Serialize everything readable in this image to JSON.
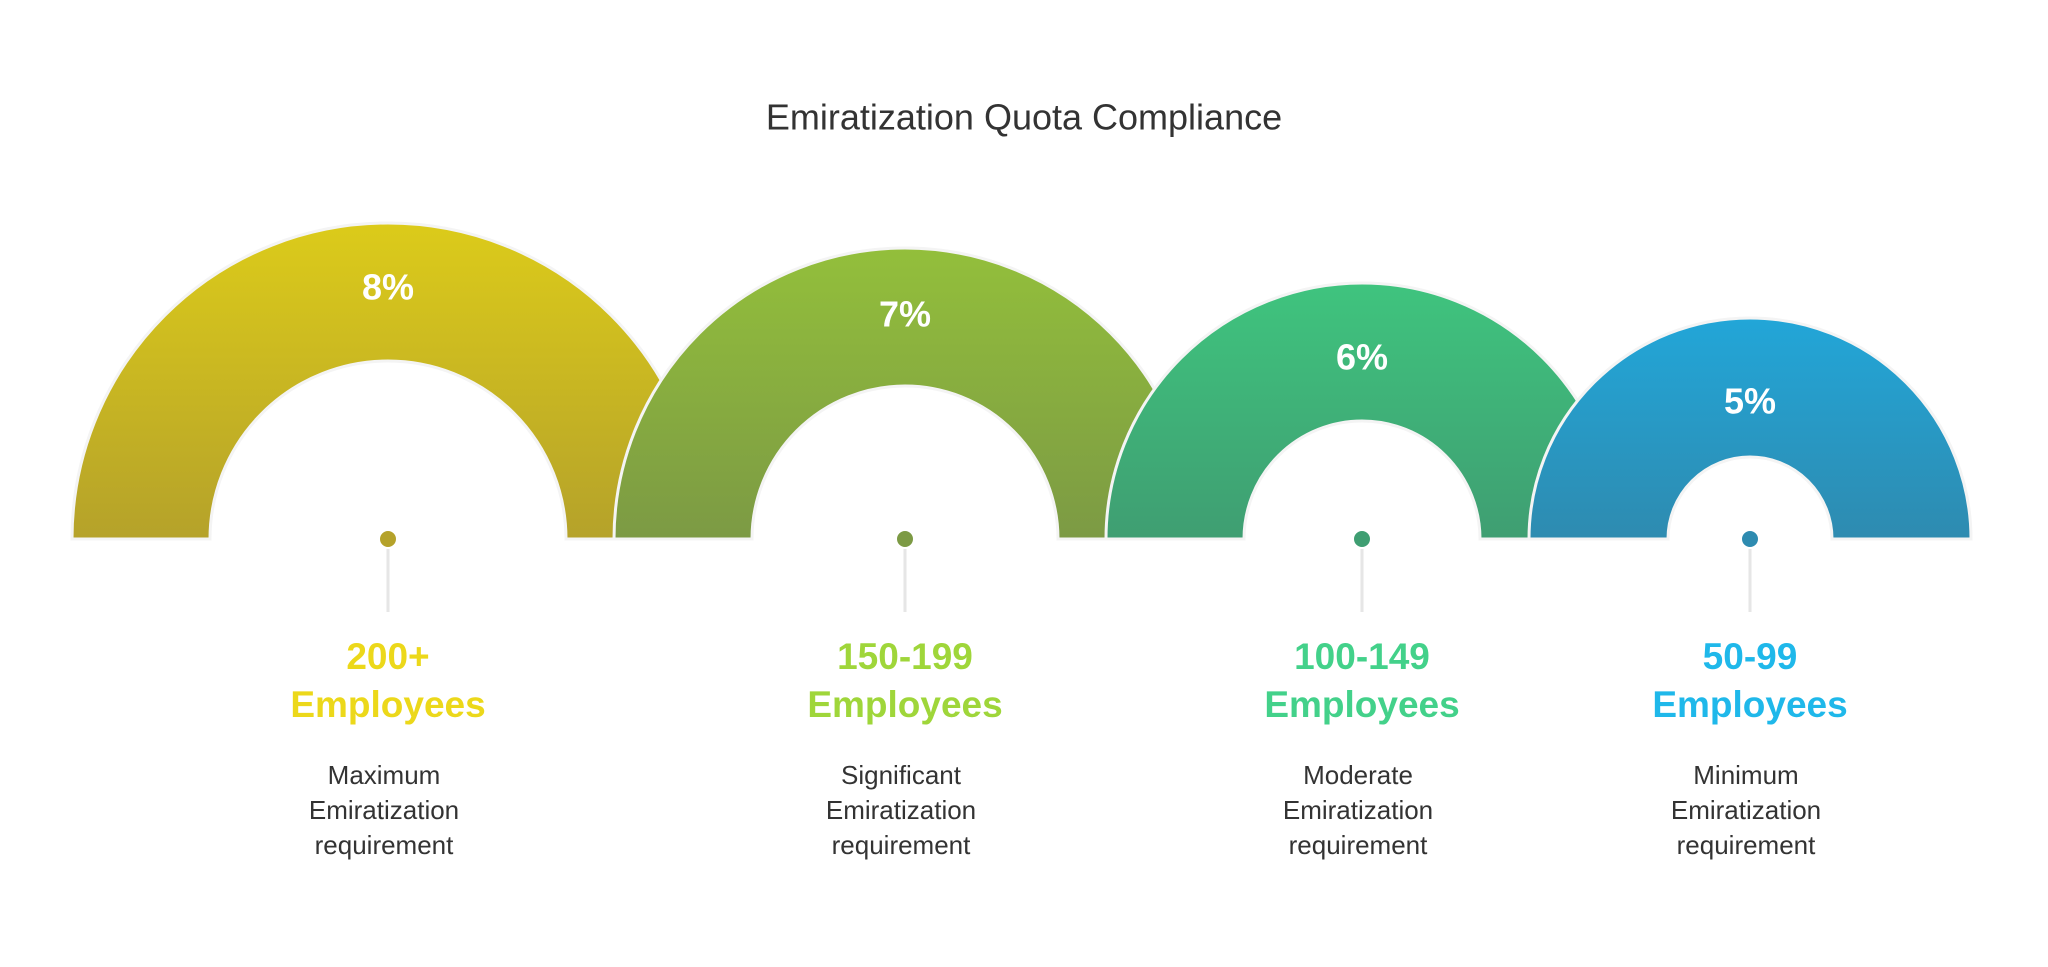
{
  "title": "Emiratization Quota Compliance",
  "items": [
    {
      "percent": "8%",
      "range": "200+",
      "unit": "Employees",
      "description": "Maximum Emiratization requirement"
    },
    {
      "percent": "7%",
      "range": "150-199",
      "unit": "Employees",
      "description": "Significant Emiratization requirement"
    },
    {
      "percent": "6%",
      "range": "100-149",
      "unit": "Employees",
      "description": "Moderate Emiratization requirement"
    },
    {
      "percent": "5%",
      "range": "50-99",
      "unit": "Employees",
      "description": "Minimum Emiratization requirement"
    }
  ]
}
